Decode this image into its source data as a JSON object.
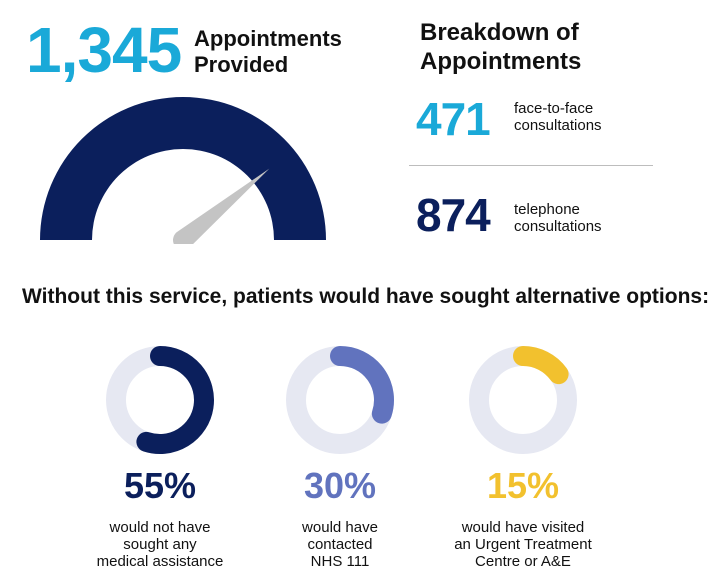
{
  "headline": {
    "value": "1,345",
    "label_line1": "Appointments",
    "label_line2": "Provided"
  },
  "gauge": {
    "needle_fraction": 0.78,
    "colors": {
      "arc": "#0b1f5c",
      "needle": "#c4c4c4"
    }
  },
  "breakdown": {
    "title_line1": "Breakdown of",
    "title_line2": "Appointments",
    "items": [
      {
        "value": "471",
        "label_line1": "face-to-face",
        "label_line2": "consultations",
        "color": "#1aa9d8"
      },
      {
        "value": "874",
        "label_line1": "telephone",
        "label_line2": "consultations",
        "color": "#0b1f5c"
      }
    ]
  },
  "alternatives": {
    "title": "Without this service, patients would have sought alternative options:",
    "track_color": "#e6e8f2",
    "items": [
      {
        "percent_text": "55%",
        "fraction": 0.55,
        "color": "#0b1f5c",
        "desc_line1": "would not have",
        "desc_line2": "sought any",
        "desc_line3": "medical assistance"
      },
      {
        "percent_text": "30%",
        "fraction": 0.3,
        "color": "#6173be",
        "desc_line1": "would have",
        "desc_line2": "contacted",
        "desc_line3": "NHS 111"
      },
      {
        "percent_text": "15%",
        "fraction": 0.15,
        "color": "#f2c12e",
        "desc_line1": "would have visited",
        "desc_line2": "an Urgent Treatment",
        "desc_line3": "Centre or A&E"
      }
    ]
  }
}
